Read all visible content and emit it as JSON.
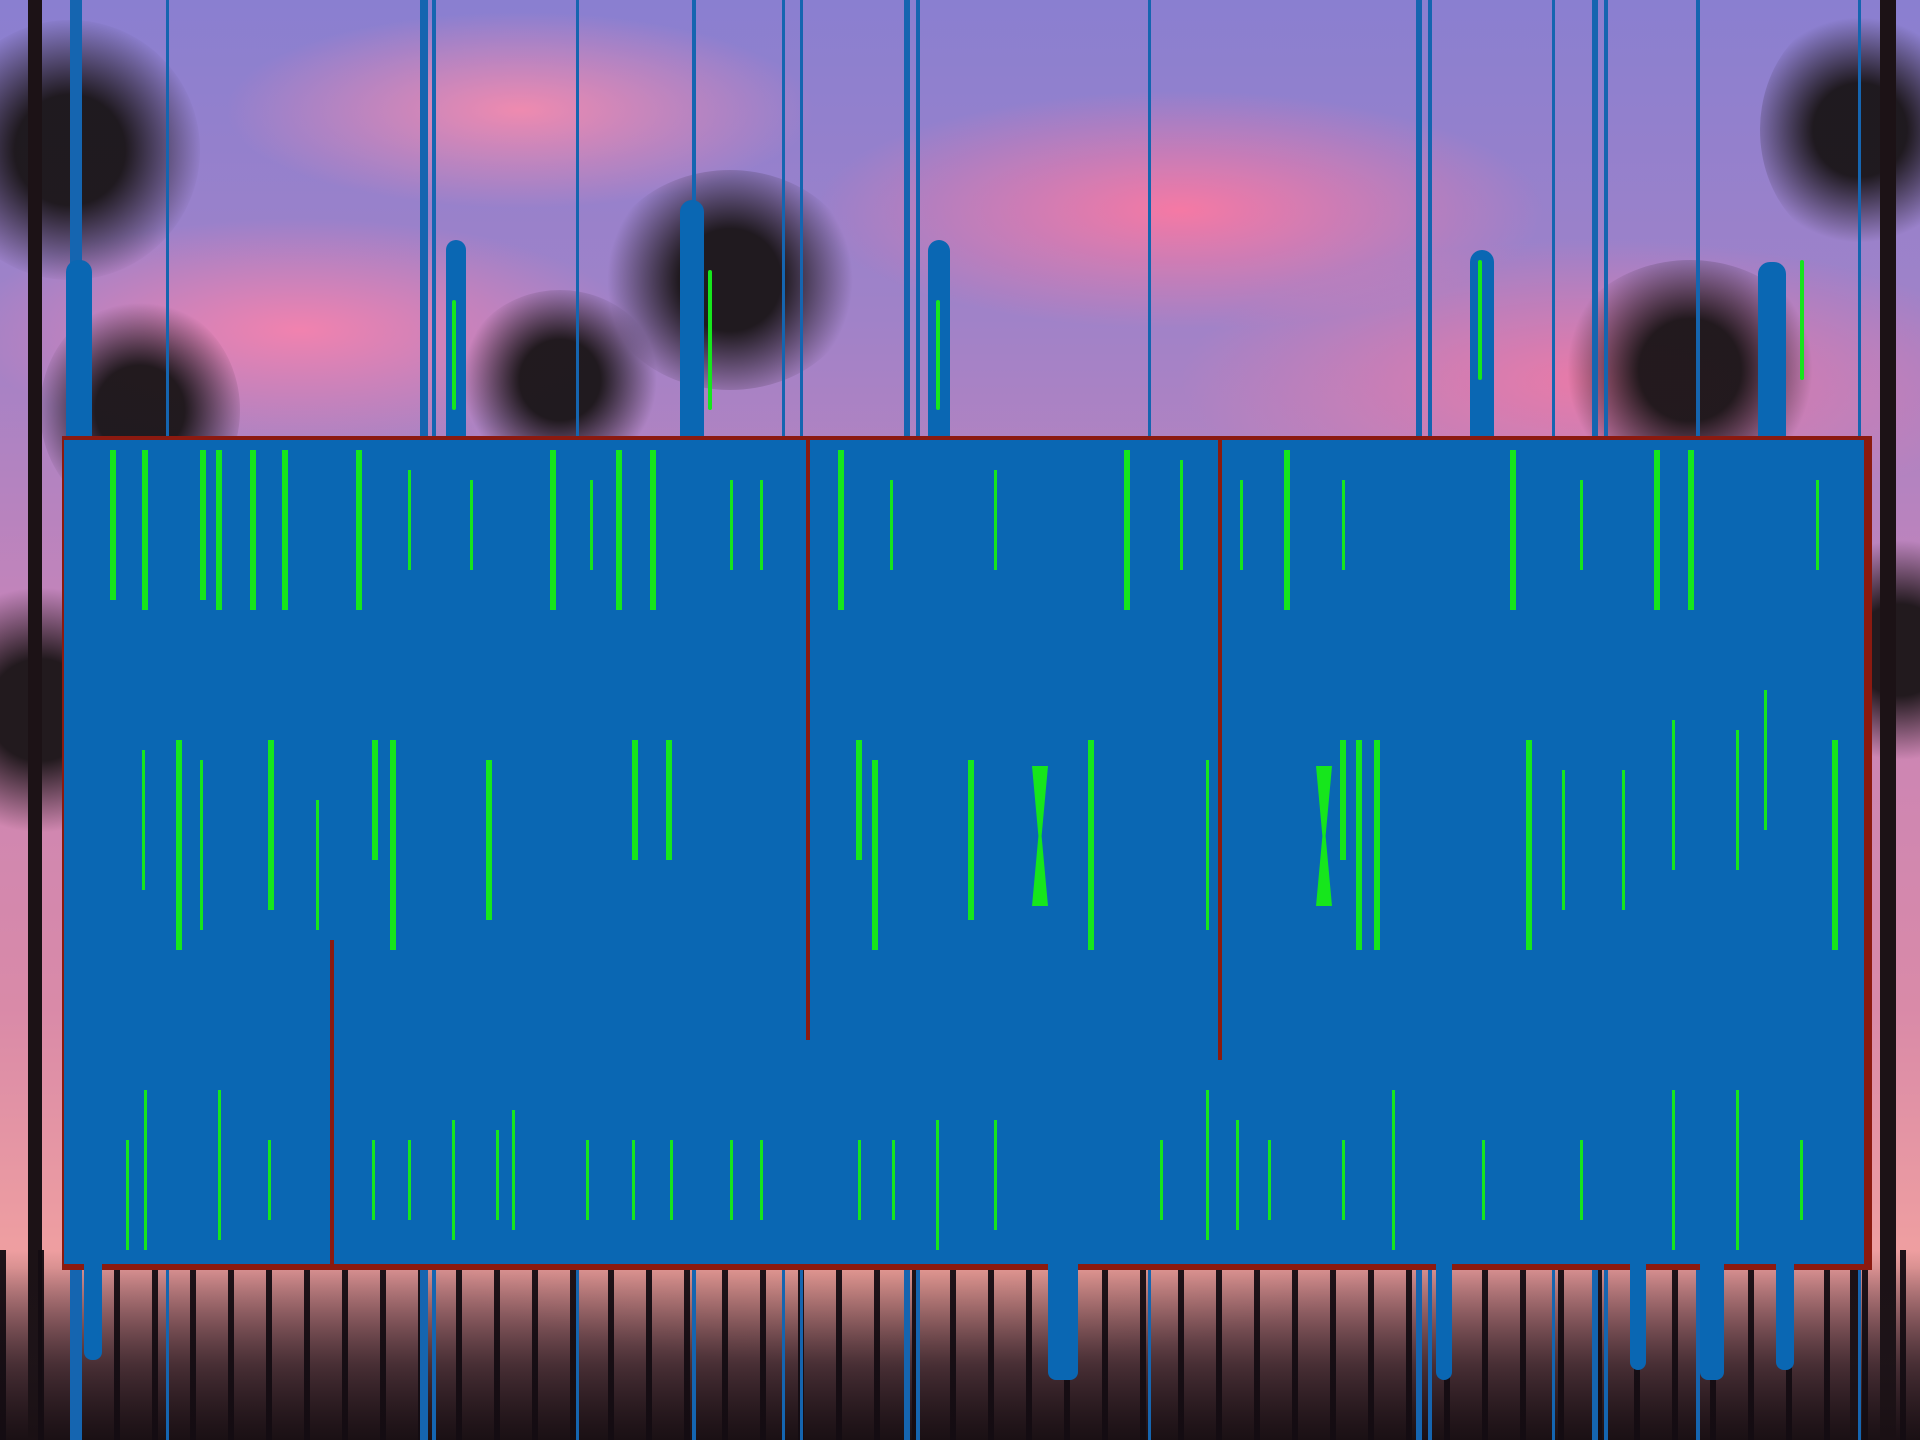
{
  "scene": {
    "background": "sunset-sky-with-pine-silhouettes",
    "colors": {
      "sky_top": "#8a7fd0",
      "cloud_pink": "#ff8cae",
      "overlay_blue": "#0a67b3",
      "bar_green": "#16e61c",
      "edge_red": "#8b1a10",
      "tree_silhouette": "#1c1216"
    }
  },
  "overlay": {
    "description_visible_text": ""
  }
}
